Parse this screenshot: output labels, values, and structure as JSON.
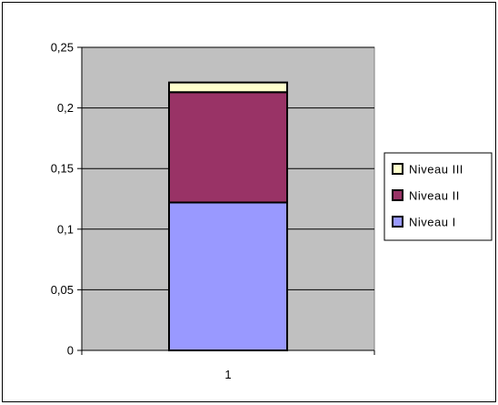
{
  "chart_data": {
    "type": "bar",
    "stacked": true,
    "categories": [
      "1"
    ],
    "series": [
      {
        "name": "Niveau I",
        "values": [
          0.122
        ],
        "color": "#9999ff"
      },
      {
        "name": "Niveau II",
        "values": [
          0.091
        ],
        "color": "#993366"
      },
      {
        "name": "Niveau III",
        "values": [
          0.008
        ],
        "color": "#ffffcc"
      }
    ],
    "y_ticks": [
      "0",
      "0,05",
      "0,1",
      "0,15",
      "0,2",
      "0,25"
    ],
    "ylim": [
      0,
      0.25
    ],
    "grid": true,
    "legend": {
      "placement": "right",
      "order": [
        "Niveau III",
        "Niveau II",
        "Niveau I"
      ]
    },
    "plot_background": "#c0c0c0"
  }
}
